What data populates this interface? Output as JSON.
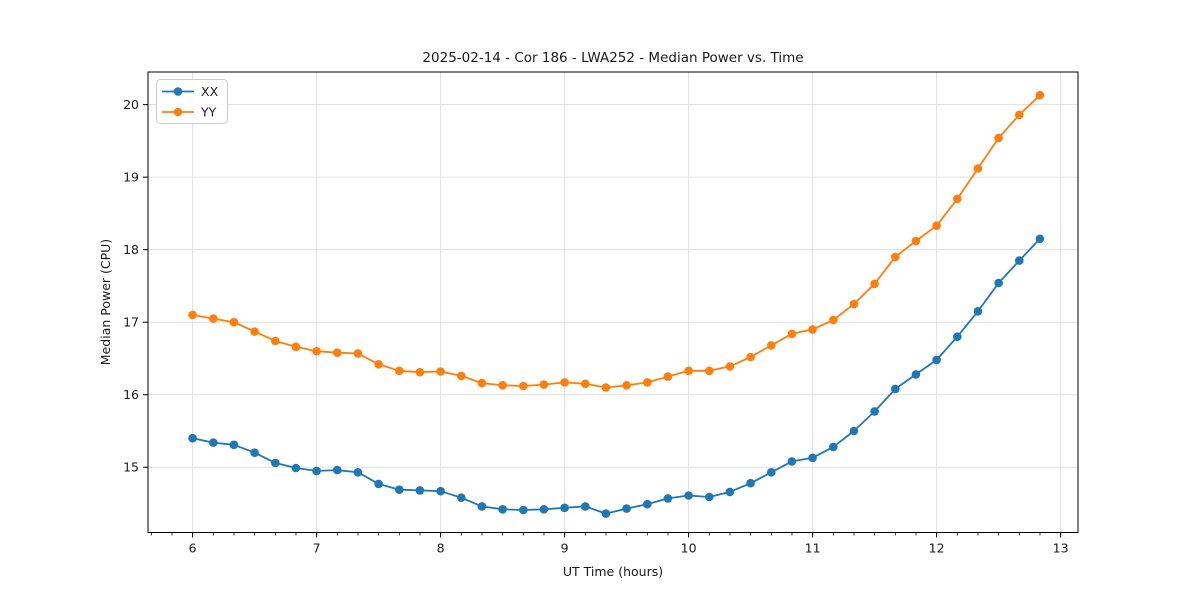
{
  "chart_data": {
    "type": "line",
    "title": "2025-02-14 - Cor 186 - LWA252 - Median Power vs. Time",
    "xlabel": "UT Time (hours)",
    "ylabel": "Median Power (CPU)",
    "xlim": [
      5.64,
      13.14
    ],
    "ylim": [
      14.1,
      20.45
    ],
    "x_ticks": [
      6,
      7,
      8,
      9,
      10,
      11,
      12,
      13
    ],
    "y_ticks": [
      15,
      16,
      17,
      18,
      19,
      20
    ],
    "x_minor_step": 0.166667,
    "grid": true,
    "legend_position": "upper left",
    "marker": "circle",
    "x": [
      6,
      6.167,
      6.333,
      6.5,
      6.667,
      6.833,
      7,
      7.167,
      7.333,
      7.5,
      7.667,
      7.833,
      8,
      8.167,
      8.333,
      8.5,
      8.667,
      8.833,
      9,
      9.167,
      9.333,
      9.5,
      9.667,
      9.833,
      10,
      10.167,
      10.333,
      10.5,
      10.667,
      10.833,
      11,
      11.167,
      11.333,
      11.5,
      11.667,
      11.833,
      12,
      12.167,
      12.333,
      12.5,
      12.667,
      12.833
    ],
    "series": [
      {
        "name": "XX",
        "color": "#1f77b4",
        "values": [
          15.4,
          15.34,
          15.31,
          15.2,
          15.06,
          14.99,
          14.95,
          14.96,
          14.93,
          14.77,
          14.69,
          14.68,
          14.67,
          14.58,
          14.46,
          14.42,
          14.41,
          14.42,
          14.44,
          14.46,
          14.36,
          14.43,
          14.49,
          14.57,
          14.61,
          14.59,
          14.66,
          14.78,
          14.93,
          15.08,
          15.13,
          15.28,
          15.5,
          15.77,
          16.08,
          16.28,
          16.48,
          16.8,
          17.15,
          17.54,
          17.85,
          18.15
        ]
      },
      {
        "name": "YY",
        "color": "#ff7f0e",
        "values": [
          17.1,
          17.05,
          17.0,
          16.87,
          16.74,
          16.66,
          16.6,
          16.58,
          16.57,
          16.42,
          16.33,
          16.31,
          16.32,
          16.26,
          16.16,
          16.13,
          16.12,
          16.14,
          16.17,
          16.15,
          16.1,
          16.13,
          16.17,
          16.25,
          16.33,
          16.33,
          16.39,
          16.52,
          16.68,
          16.84,
          16.9,
          17.03,
          17.25,
          17.53,
          17.9,
          18.12,
          18.33,
          18.7,
          19.12,
          19.54,
          19.86,
          20.13
        ]
      }
    ]
  }
}
